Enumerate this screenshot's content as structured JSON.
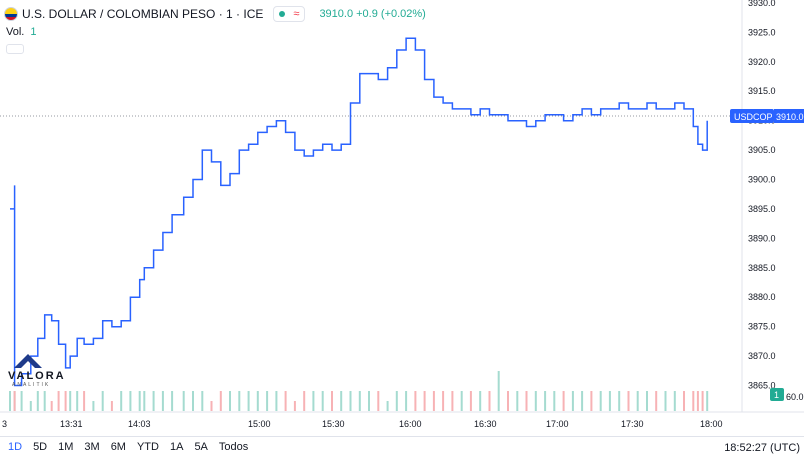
{
  "header": {
    "symbol_label": "U.S. DOLLAR / COLOMBIAN PESO · 1 · ICE",
    "approx_icon": "≈",
    "price_text": "3910.0 +0.9 (+0.02%)",
    "volume_label": "Vol.",
    "volume_value": "1"
  },
  "logo": {
    "name": "VALORA",
    "sub": "ANALITIK"
  },
  "bottom_bar": {
    "ranges": [
      "1D",
      "5D",
      "1M",
      "3M",
      "6M",
      "YTD",
      "1A",
      "5A",
      "Todos"
    ],
    "active": "1D",
    "clock": "18:52:27 (UTC)"
  },
  "colors": {
    "line": "#2962ff",
    "volume_up": "#a5dbd0",
    "volume_down": "#f7b2b5",
    "axis_text": "#131722",
    "price_tag": "#2962ff",
    "volume_tag": "#22ab94"
  },
  "chart_data": {
    "type": "line",
    "symbol": "USDCOP",
    "x_tick_labels": [
      "3",
      "13:31",
      "14:03",
      "15:00",
      "15:30",
      "16:00",
      "16:30",
      "17:00",
      "17:30",
      "18:00"
    ],
    "y_ticks": [
      3930,
      3925,
      3920,
      3915,
      3910,
      3905,
      3900,
      3895,
      3890,
      3885,
      3880,
      3875,
      3870,
      3865
    ],
    "y_tick_labels": [
      "3930.0",
      "3925.0",
      "3920.0",
      "3915.0",
      "3910.0",
      "3905.0",
      "3900.0",
      "3895.0",
      "3890.0",
      "3885.0",
      "3880.0",
      "3875.0",
      "3870.0",
      "3865.0"
    ],
    "ylim": [
      3860.5,
      3930.5
    ],
    "volume_axis_label": "1",
    "volume_partial_label": "60.0",
    "last_price_label": "USDCOP",
    "last_price_value": "3910.0",
    "last_price": 3910.0,
    "series": [
      {
        "x": [
          "13:05",
          "13:07",
          "13:07",
          "13:10",
          "13:14",
          "13:17",
          "13:20",
          "13:23",
          "13:26",
          "13:29",
          "13:31",
          "13:34",
          "13:37",
          "13:41",
          "13:45",
          "13:49",
          "13:53",
          "13:57",
          "14:01",
          "14:03",
          "14:07",
          "14:11",
          "14:15",
          "14:20",
          "14:24",
          "14:28",
          "14:32",
          "14:36",
          "14:40",
          "14:44",
          "14:48",
          "14:52",
          "14:56",
          "15:00",
          "15:04",
          "15:08",
          "15:12",
          "15:16",
          "15:20",
          "15:24",
          "15:28",
          "15:32",
          "15:36",
          "15:40",
          "15:44",
          "15:48",
          "15:52",
          "15:56",
          "16:00",
          "16:04",
          "16:08",
          "16:12",
          "16:16",
          "16:20",
          "16:24",
          "16:28",
          "16:32",
          "16:36",
          "16:40",
          "16:44",
          "16:48",
          "16:52",
          "16:56",
          "17:00",
          "17:04",
          "17:08",
          "17:12",
          "17:16",
          "17:20",
          "17:24",
          "17:28",
          "17:32",
          "17:36",
          "17:40",
          "17:44",
          "17:48",
          "17:52",
          "17:56",
          "18:00",
          "18:02",
          "18:04",
          "18:06"
        ],
        "values": [
          3895,
          3899,
          3865,
          3867,
          3870,
          3873,
          3877,
          3876,
          3872,
          3868,
          3870,
          3873,
          3872,
          3873,
          3876,
          3875,
          3876,
          3880,
          3883,
          3885,
          3888,
          3891,
          3894,
          3897,
          3900,
          3905,
          3903,
          3899,
          3901,
          3905,
          3906,
          3908,
          3909,
          3910,
          3908,
          3905,
          3904,
          3905,
          3906,
          3905,
          3906,
          3913,
          3918,
          3918,
          3917,
          3919,
          3922,
          3924,
          3922,
          3917,
          3914,
          3913,
          3912,
          3912,
          3911,
          3912,
          3911,
          3911,
          3910,
          3910,
          3909,
          3910,
          3911,
          3911,
          3910,
          3911,
          3912,
          3911,
          3912,
          3912,
          3913,
          3912,
          3912,
          3913,
          3912,
          3912,
          3913,
          3912,
          3909,
          3906,
          3905,
          3910
        ]
      }
    ],
    "volume": [
      1,
      1,
      1,
      1,
      0.5,
      1,
      1,
      0.5,
      1,
      1,
      1,
      1,
      1,
      0.5,
      1,
      0.5,
      1,
      1,
      1,
      1,
      1,
      1,
      1,
      1,
      1,
      1,
      0.5,
      1,
      1,
      1,
      1,
      1,
      1,
      1,
      1,
      0.5,
      1,
      1,
      1,
      1,
      1,
      1,
      1,
      1,
      1,
      0.5,
      1,
      1,
      1,
      1,
      1,
      1,
      1,
      1,
      1,
      1,
      1,
      2,
      1,
      1,
      1,
      1,
      1,
      1,
      1,
      1,
      1,
      1,
      1,
      1,
      1,
      1,
      1,
      1,
      1,
      1,
      1,
      1,
      1,
      1,
      1,
      1
    ],
    "grid": false
  }
}
